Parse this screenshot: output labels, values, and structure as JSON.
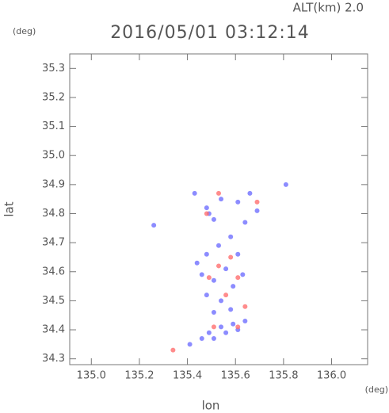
{
  "chart_data": {
    "type": "scatter",
    "title": "2016/05/01 03:12:14",
    "subtitle": "ALT(km) 2.0",
    "x_label": "lon",
    "y_label": "lat",
    "x_unit": "(deg)",
    "y_unit": "(deg)",
    "xlim": [
      134.91,
      136.15
    ],
    "ylim": [
      34.28,
      35.35
    ],
    "xticks": [
      {
        "value": 135,
        "label": "135.0"
      },
      135.2,
      135.4,
      135.6,
      135.8,
      {
        "value": 136,
        "label": "136.0"
      }
    ],
    "yticks": [
      34.3,
      34.4,
      34.5,
      34.6,
      34.7,
      34.8,
      34.9,
      {
        "value": 35,
        "label": "35.0"
      },
      35.1,
      35.2,
      35.3
    ],
    "series": [
      {
        "color": "#6f6fff",
        "x": [
          135.41,
          135.46,
          135.51,
          135.56,
          135.61,
          135.54,
          135.49,
          135.59,
          135.64,
          135.44,
          135.48,
          135.53,
          135.58,
          135.61,
          135.56,
          135.51,
          135.48,
          135.54,
          135.59,
          135.63,
          135.58,
          135.51,
          135.46,
          135.43,
          135.48,
          135.51,
          135.54,
          135.61,
          135.66,
          135.69,
          135.64,
          135.49,
          135.81,
          135.26
        ],
        "y": [
          34.35,
          34.37,
          34.37,
          34.39,
          34.4,
          34.41,
          34.39,
          34.42,
          34.43,
          34.63,
          34.66,
          34.69,
          34.72,
          34.66,
          34.61,
          34.57,
          34.52,
          34.5,
          34.55,
          34.59,
          34.47,
          34.46,
          34.59,
          34.87,
          34.82,
          34.78,
          34.85,
          34.84,
          34.87,
          34.81,
          34.77,
          34.8,
          34.9,
          34.76
        ]
      },
      {
        "color": "#ff6f6f",
        "x": [
          135.34,
          135.49,
          135.53,
          135.58,
          135.51,
          135.61,
          135.64,
          135.61,
          135.69,
          135.53,
          135.48,
          135.56
        ],
        "y": [
          34.33,
          34.58,
          34.62,
          34.65,
          34.41,
          34.41,
          34.48,
          34.58,
          34.84,
          34.87,
          34.8,
          34.52
        ]
      }
    ]
  }
}
